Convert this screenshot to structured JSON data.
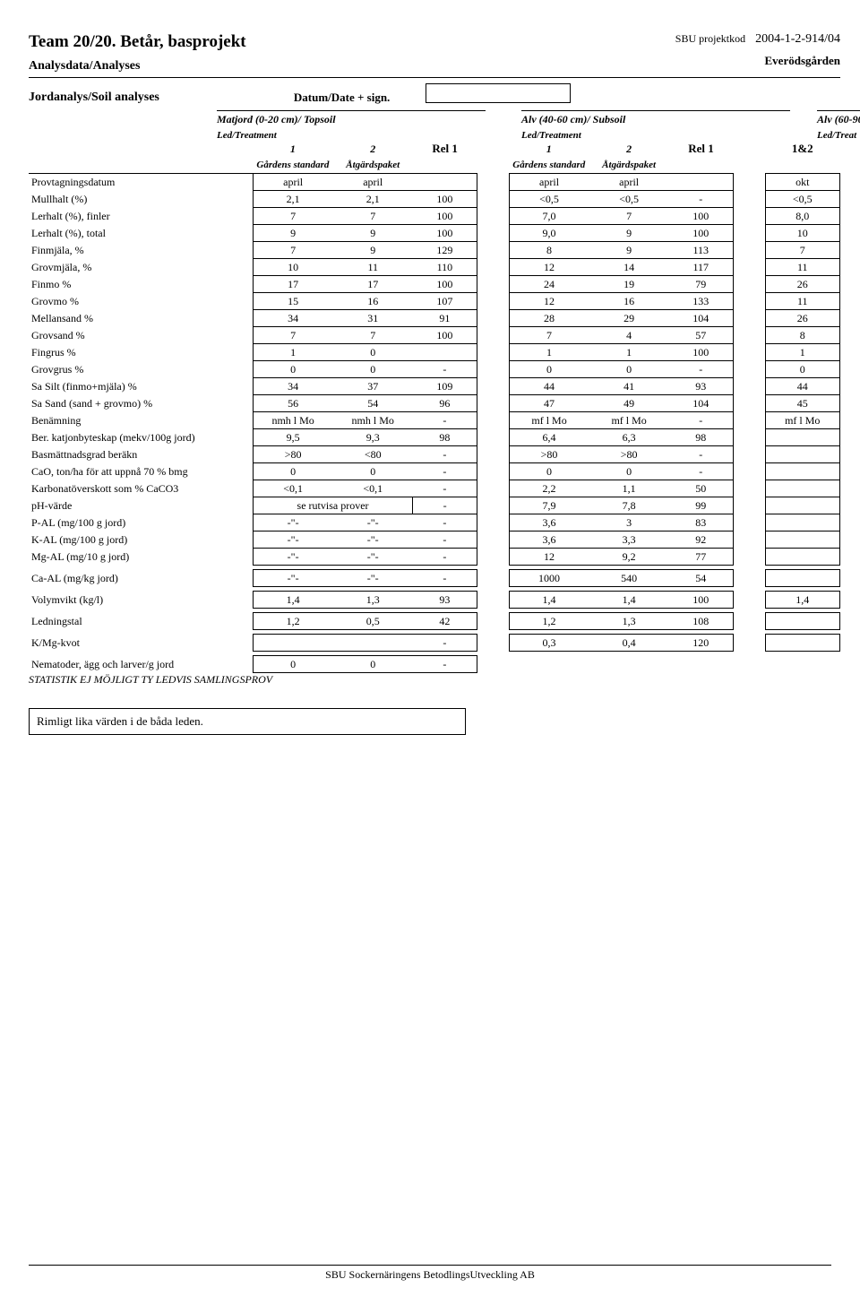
{
  "header": {
    "title": "Team 20/20. Betår, basprojekt",
    "proj_label": "SBU projektkod",
    "proj_code": "2004-1-2-914/04",
    "sub1": "Analysdata/Analyses",
    "sub_right": "Everödsgården",
    "section": "Jordanalys/Soil analyses",
    "date_label": "Datum/Date + sign."
  },
  "groups": {
    "g1": "Matjord (0-20 cm)/ Topsoil",
    "g2": "Alv (40-60 cm)/ Subsoil",
    "g3": "Alv (60-90",
    "led": "Led/Treatment",
    "led3": "Led/Treat"
  },
  "cols": {
    "n1": "1",
    "n2": "2",
    "rel": "Rel 1",
    "s1": "Gårdens standard",
    "s2": "Åtgärdspaket",
    "last": "1&2"
  },
  "rows": [
    {
      "l": "Provtagningsdatum",
      "a1": "april",
      "a2": "april",
      "r1": "",
      "b1": "april",
      "b2": "april",
      "r2": "",
      "c": "okt",
      "box": true
    },
    {
      "l": "Mullhalt  (%)",
      "a1": "2,1",
      "a2": "2,1",
      "r1": "100",
      "b1": "<0,5",
      "b2": "<0,5",
      "r2": "-",
      "c": "<0,5",
      "box": true
    },
    {
      "l": "Lerhalt  (%), finler",
      "a1": "7",
      "a2": "7",
      "r1": "100",
      "b1": "7,0",
      "b2": "7",
      "r2": "100",
      "c": "8,0",
      "box": true
    },
    {
      "l": "Lerhalt  (%), total",
      "a1": "9",
      "a2": "9",
      "r1": "100",
      "b1": "9,0",
      "b2": "9",
      "r2": "100",
      "c": "10",
      "box": true
    },
    {
      "l": "Finmjäla, %",
      "a1": "7",
      "a2": "9",
      "r1": "129",
      "b1": "8",
      "b2": "9",
      "r2": "113",
      "c": "7",
      "box": true
    },
    {
      "l": "Grovmjäla, %",
      "a1": "10",
      "a2": "11",
      "r1": "110",
      "b1": "12",
      "b2": "14",
      "r2": "117",
      "c": "11",
      "box": true
    },
    {
      "l": "Finmo %",
      "a1": "17",
      "a2": "17",
      "r1": "100",
      "b1": "24",
      "b2": "19",
      "r2": "79",
      "c": "26",
      "box": true
    },
    {
      "l": "Grovmo %",
      "a1": "15",
      "a2": "16",
      "r1": "107",
      "b1": "12",
      "b2": "16",
      "r2": "133",
      "c": "11",
      "box": true
    },
    {
      "l": "Mellansand %",
      "a1": "34",
      "a2": "31",
      "r1": "91",
      "b1": "28",
      "b2": "29",
      "r2": "104",
      "c": "26",
      "box": true
    },
    {
      "l": "Grovsand %",
      "a1": "7",
      "a2": "7",
      "r1": "100",
      "b1": "7",
      "b2": "4",
      "r2": "57",
      "c": "8",
      "box": true
    },
    {
      "l": "Fingrus %",
      "a1": "1",
      "a2": "0",
      "r1": "",
      "b1": "1",
      "b2": "1",
      "r2": "100",
      "c": "1",
      "box": true
    },
    {
      "l": "Grovgrus %",
      "a1": "0",
      "a2": "0",
      "r1": "-",
      "b1": "0",
      "b2": "0",
      "r2": "-",
      "c": "0",
      "box": true
    },
    {
      "l": "Sa Silt (finmo+mjäla) %",
      "a1": "34",
      "a2": "37",
      "r1": "109",
      "b1": "44",
      "b2": "41",
      "r2": "93",
      "c": "44",
      "box": true
    },
    {
      "l": "Sa Sand (sand + grovmo) %",
      "a1": "56",
      "a2": "54",
      "r1": "96",
      "b1": "47",
      "b2": "49",
      "r2": "104",
      "c": "45",
      "box": true
    },
    {
      "l": "Benämning",
      "a1": "nmh l Mo",
      "a2": "nmh l Mo",
      "r1": "-",
      "b1": "mf l Mo",
      "b2": "mf l Mo",
      "r2": "-",
      "c": "mf l Mo",
      "box": true
    },
    {
      "l": "Ber. katjonbyteskap (mekv/100g jord)",
      "a1": "9,5",
      "a2": "9,3",
      "r1": "98",
      "b1": "6,4",
      "b2": "6,3",
      "r2": "98",
      "c": "",
      "box": true
    },
    {
      "l": "Basmättnadsgrad beräkn",
      "a1": ">80",
      "a2": "<80",
      "r1": "-",
      "b1": ">80",
      "b2": ">80",
      "r2": "-",
      "c": "",
      "box": true
    },
    {
      "l": "CaO, ton/ha för att uppnå 70 % bmg",
      "a1": "0",
      "a2": "0",
      "r1": "-",
      "b1": "0",
      "b2": "0",
      "r2": "-",
      "c": "",
      "box": true
    },
    {
      "l": "Karbonatöverskott som % CaCO3",
      "a1": "<0,1",
      "a2": "<0,1",
      "r1": "-",
      "b1": "2,2",
      "b2": "1,1",
      "r2": "50",
      "c": "",
      "box": true
    },
    {
      "l": "pH-värde",
      "a1": "se rutvisa prover",
      "a2": "",
      "r1": "-",
      "b1": "7,9",
      "b2": "7,8",
      "r2": "99",
      "c": "",
      "box": true,
      "merge12": true
    },
    {
      "l": "P-AL  (mg/100 g jord)",
      "a1": "-\"-",
      "a2": "-\"-",
      "r1": "-",
      "b1": "3,6",
      "b2": "3",
      "r2": "83",
      "c": "",
      "box": true
    },
    {
      "l": "K-AL  (mg/100 g jord)",
      "a1": "-\"-",
      "a2": "-\"-",
      "r1": "-",
      "b1": "3,6",
      "b2": "3,3",
      "r2": "92",
      "c": "",
      "box": true
    },
    {
      "l": "Mg-AL  (mg/10 g jord)",
      "a1": "-\"-",
      "a2": "-\"-",
      "r1": "-",
      "b1": "12",
      "b2": "9,2",
      "r2": "77",
      "c": "",
      "box": true
    },
    {
      "l": "Ca-AL  (mg/kg jord)",
      "a1": "-\"-",
      "a2": "-\"-",
      "r1": "-",
      "b1": "1000",
      "b2": "540",
      "r2": "54",
      "c": "",
      "box": true,
      "vspace": true
    },
    {
      "l": "Volymvikt (kg/l)",
      "a1": "1,4",
      "a2": "1,3",
      "r1": "93",
      "b1": "1,4",
      "b2": "1,4",
      "r2": "100",
      "c": "1,4",
      "box": true,
      "vspace": true
    },
    {
      "l": "Ledningstal",
      "a1": "1,2",
      "a2": "0,5",
      "r1": "42",
      "b1": "1,2",
      "b2": "1,3",
      "r2": "108",
      "c": "",
      "box": true,
      "vspace": true
    },
    {
      "l": "K/Mg-kvot",
      "a1": "",
      "a2": "",
      "r1": "-",
      "b1": "0,3",
      "b2": "0,4",
      "r2": "120",
      "c": "",
      "box": true,
      "vspace": true
    },
    {
      "l": "Nematoder, ägg och larver/g jord",
      "a1": "0",
      "a2": "0",
      "r1": "-",
      "b1": "",
      "b2": "",
      "r2": "",
      "c": "",
      "box": false,
      "vspace": true,
      "onlyA": true
    }
  ],
  "stat": "STATISTIK EJ MÖJLIGT TY LEDVIS SAMLINGSPROV",
  "comment": "Rimligt lika värden i de båda leden.",
  "footer": "SBU Sockernäringens BetodlingsUtveckling AB",
  "style": {
    "page_bg": "#ffffff",
    "text_color": "#000000",
    "border_color": "#000000",
    "title_fontsize": 19,
    "body_fontsize": 13,
    "table_fontsize": 12
  }
}
